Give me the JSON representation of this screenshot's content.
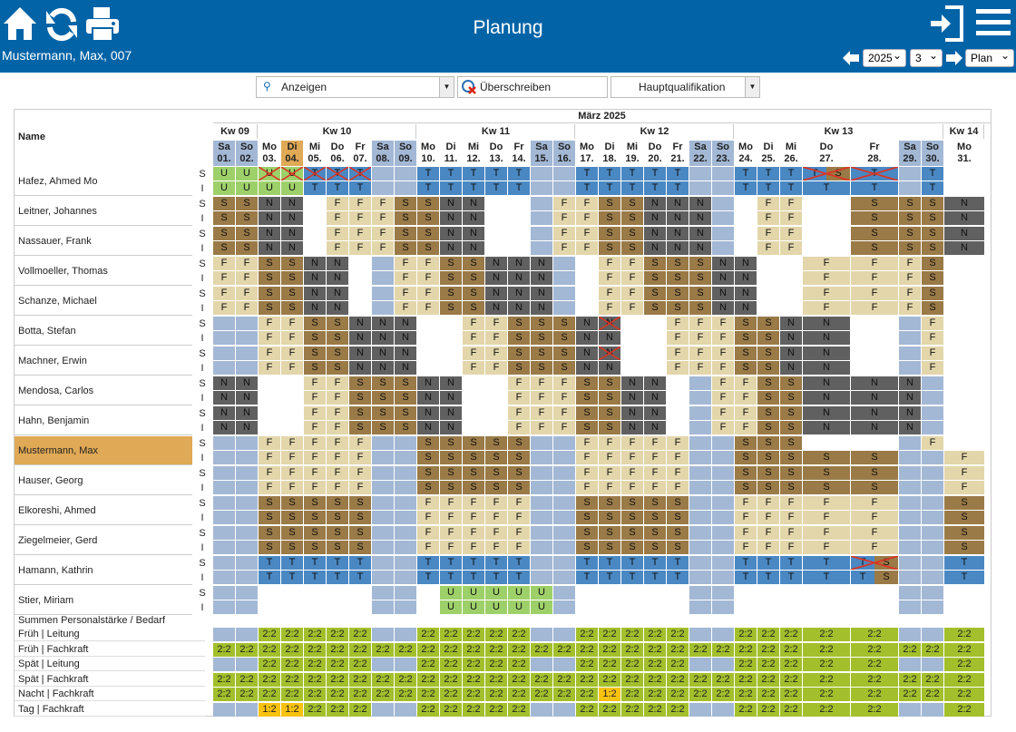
{
  "header": {
    "title": "Planung",
    "employee": "Mustermann, Max, 007",
    "year": "2025",
    "month": "3",
    "view": "Plan"
  },
  "toolbar": {
    "search": "Anzeigen",
    "overwrite": "Überschreiben",
    "qual": "Hauptqualifikation"
  },
  "grid": {
    "name_header": "Name",
    "month_header": "März 2025",
    "row_kinds": [
      "S",
      "I"
    ],
    "summary_title": "Summen Personalstärke / Bedarf"
  },
  "weeks": [
    "Kw 09",
    "Kw 10",
    "Kw 11",
    "Kw 12",
    "Kw 13",
    "Kw 14"
  ],
  "day_names": [
    "Sa",
    "So",
    "Mo",
    "Di",
    "Mi",
    "Do",
    "Fr",
    "Sa",
    "So",
    "Mo",
    "Di",
    "Mi",
    "Do",
    "Fr",
    "Sa",
    "So",
    "Mo",
    "Di",
    "Mi",
    "Do",
    "Fr",
    "Sa",
    "So",
    "Mo",
    "Di",
    "Mi",
    "Do",
    "Fr",
    "Sa",
    "So",
    "Mo"
  ],
  "day_dates": [
    "01.",
    "02.",
    "03.",
    "04.",
    "05.",
    "06.",
    "07.",
    "08.",
    "09.",
    "10.",
    "11.",
    "12.",
    "13.",
    "14.",
    "15.",
    "16.",
    "17.",
    "18.",
    "19.",
    "20.",
    "21.",
    "22.",
    "23.",
    "24.",
    "25.",
    "26.",
    "27.",
    "28.",
    "29.",
    "30.",
    "31."
  ],
  "colors": {
    "header": "#0264a7",
    "weekend": "#a3b8d5",
    "today": "#e0a955",
    "F": "#e3d6aa",
    "S": "#9a7a47",
    "N": "#606060",
    "T": "#4a88c3",
    "U": "#9ed06a",
    "sum": "#a3bf2c",
    "sum_low": "#f9c20f"
  },
  "employees": [
    {
      "name": "Hafez, Ahmed Mo",
      "S": "UUuuttt..TTTTT..TTTTT..TTTBT.T",
      "I": "UUUUTTT..TTTTT..TTTTT..TTTTT.T",
      "x": [
        2,
        3,
        4,
        5,
        6,
        26,
        27
      ]
    },
    {
      "name": "Leitner, Johannes",
      "S": "SSNN.FFFSSNN...FFSSNNN..FF.SSSN",
      "I": "SSNN.FFFSSNN...FFSSNNN..FF.SSSN"
    },
    {
      "name": "Nassauer, Frank",
      "S": "SSNN.FFFSSNN...FFSSNNN..FF.SSSN",
      "I": "SSNN.FFFSSNN...FFSSNNN..FF.SSSN"
    },
    {
      "name": "Vollmoeller, Thomas",
      "S": "FFSSNN..FFSSNNN..FFSSSNN..FFFS",
      "I": "FFSSNN..FFSSNNN..FFSSSNN..FFFS"
    },
    {
      "name": "Schanze, Michael",
      "S": "FFSSNN..FFSSNNN..FFSSSNN..FFFS",
      "I": "FFSSNN..FFSSNNN..FFSSSNN..FFFS"
    },
    {
      "name": "Botta, Stefan",
      "S": "..FFSSNNN..FFSSSNN..FFFSSNN..F",
      "I": "..FFSSNNN..FFSSSNN..FFFSSNN..F",
      "x": [
        17
      ]
    },
    {
      "name": "Machner, Erwin",
      "S": "..FFSSNNN..FFSSSNN..FFFSSNN..F",
      "I": "..FFSSNNN..FFSSSNN..FFFSSNN..F",
      "x": [
        17
      ]
    },
    {
      "name": "Mendosa, Carlos",
      "S": "NN..FFSSSNN..FFFSSNN..FFSSNNN.",
      "I": "NN..FFSSSNN..FFFSSNN..FFSSNNN."
    },
    {
      "name": "Hahn, Benjamin",
      "S": "NN..FFSSSNN..FFFSSNN..FFSSNNN.",
      "I": "NN..FFSSSNN..FFFSSNN..FFSSNNN."
    },
    {
      "name": "Mustermann, Max",
      "S": "..FFFFF..SSSSS..FFFFF..SSS...F",
      "I": "..FFFFF..SSSSS..FFFFF..SSSSS..F",
      "hl": true
    },
    {
      "name": "Hauser, Georg",
      "S": "..FFFFF..SSSSS..FFFFF..SSSSS..F",
      "I": "..FFFFF..SSSSS..FFFFF..SSSSS..F"
    },
    {
      "name": "Elkoreshi, Ahmed",
      "S": "..SSSSS..FFFFF..SSSSS..FFFFF..S",
      "I": "..SSSSS..FFFFF..SSSSS..FFFFF..S"
    },
    {
      "name": "Ziegelmeier, Gerd",
      "S": "..SSSSS..FFFFF..SSSSS..FFFFF..S",
      "I": "..SSSSS..FFFFF..SSSSS..FFFFF..S"
    },
    {
      "name": "Hamann, Kathrin",
      "S": "..TTTTT..TTTTT..TTTTT..TTTTB..T",
      "I": "..TTTTT..TTTTT..TTTTT..TTTTC..T",
      "x": [
        27
      ]
    },
    {
      "name": "Stier, Miriam",
      "S": "..........UUUUU...............",
      "I": "..........UUUUU..............."
    }
  ],
  "summary": [
    {
      "label": "Früh | Leitung",
      "pattern": "..WWWWW..WWWWW..WWWWW..WWWWW..W"
    },
    {
      "label": "Früh | Fachkraft",
      "pattern": "WWWWWWWWWWWWWWWWWWWWWWWWWWWWWWW"
    },
    {
      "label": "Spät | Leitung",
      "pattern": "..WWWWW..WWWWW..WWWWW..WWWWW..W"
    },
    {
      "label": "Spät | Fachkraft",
      "pattern": "WWWWWWWWWWWWWWWWWWWWWWWWWWWWWWW"
    },
    {
      "label": "Nacht | Fachkraft",
      "pattern": "WWWWWWWWWWWWWWWWWYWWWWWWWWWWWWW"
    },
    {
      "label": "Tag | Fachkraft",
      "pattern": "..YYWWW..WWWWW..WWWWW..WWWWW..W"
    }
  ],
  "sum_full": "2:2",
  "sum_low": "1:2"
}
